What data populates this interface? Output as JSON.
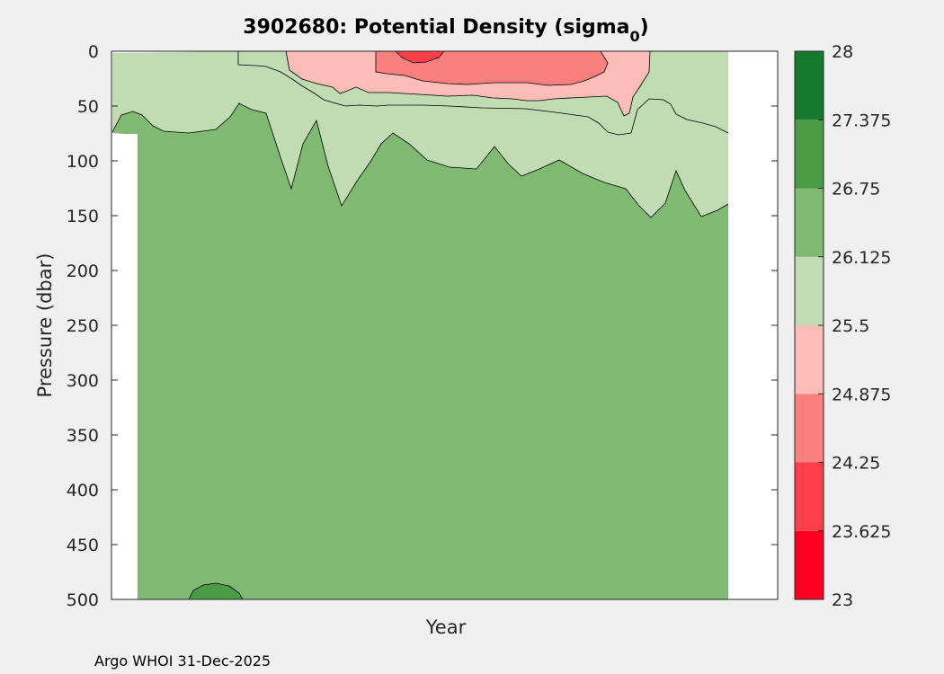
{
  "chart_data": {
    "type": "filled-contour",
    "title": "3902680: Potential Density (sigma",
    "title_subscript": "0",
    "title_suffix": ")",
    "xlabel": "Year",
    "ylabel": "Pressure (dbar)",
    "ylim": [
      0,
      500
    ],
    "y_reversed": true,
    "y_ticks": [
      "0",
      "50",
      "100",
      "150",
      "200",
      "250",
      "300",
      "350",
      "400",
      "450",
      "500"
    ],
    "colorbar": {
      "levels": [
        "23",
        "23.625",
        "24.25",
        "24.875",
        "25.5",
        "26.125",
        "26.75",
        "27.375",
        "28"
      ],
      "colors": [
        "#ff0022",
        "#ff404a",
        "#fa8080",
        "#fcbcb7",
        "#bfdcb2",
        "#80ba72",
        "#4a9a46",
        "#167a2e"
      ]
    },
    "region_colors": {
      "white": "#ffffff",
      "lightgreen": "#bfdcb2",
      "green": "#80ba72",
      "darkgreen": "#4a9a46",
      "lightpink": "#fcbcb7",
      "pink": "#fa8080",
      "red": "#ff404a"
    }
  },
  "credit": "Argo WHOI 31-Dec-2025"
}
